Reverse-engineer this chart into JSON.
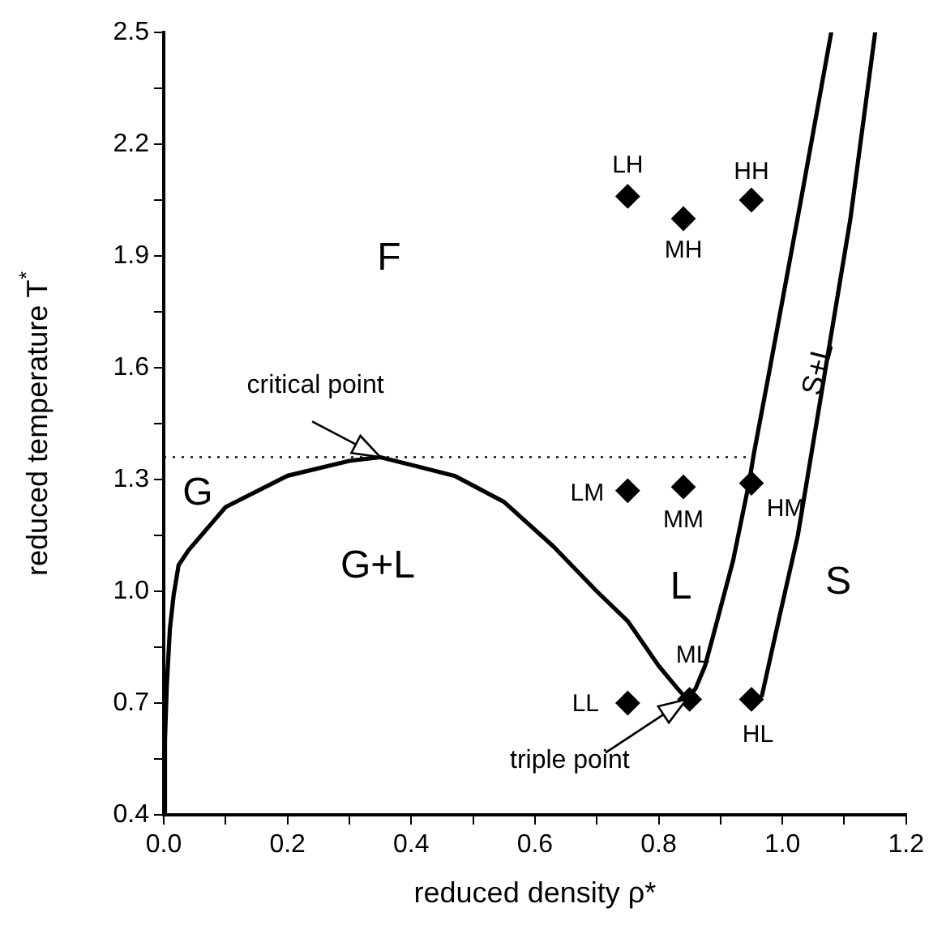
{
  "chart_data": {
    "type": "line",
    "xlabel": "reduced density ρ*",
    "ylabel": "reduced temperature T$^{*}$",
    "xlim": [
      0,
      1.2
    ],
    "ylim": [
      0.4,
      2.5
    ],
    "xticks": [
      {
        "value": 0,
        "label": "0.0"
      },
      {
        "value": 0.1,
        "label": null
      },
      {
        "value": 0.2,
        "label": "0.2"
      },
      {
        "value": 0.3,
        "label": null
      },
      {
        "value": 0.4,
        "label": "0.4"
      },
      {
        "value": 0.5,
        "label": null
      },
      {
        "value": 0.6,
        "label": "0.6"
      },
      {
        "value": 0.7,
        "label": null
      },
      {
        "value": 0.8,
        "label": "0.8"
      },
      {
        "value": 0.9,
        "label": null
      },
      {
        "value": 1,
        "label": "1.0"
      },
      {
        "value": 1.1,
        "label": null
      },
      {
        "value": 1.2,
        "label": "1.2"
      }
    ],
    "yticks": [
      0.4,
      {
        "value": 0.55,
        "label": null
      },
      0.7,
      {
        "value": 0.85,
        "label": null
      },
      {
        "value": 1,
        "label": "1.0"
      },
      {
        "value": 1.15,
        "label": null
      },
      1.3,
      {
        "value": 1.45,
        "label": null
      },
      1.6,
      {
        "value": 1.75,
        "label": null
      },
      1.9,
      {
        "value": 2.05,
        "label": null
      },
      2.2,
      {
        "value": 2.35,
        "label": null
      },
      2.5
    ],
    "series": [
      {
        "type": "line",
        "color": "#000000",
        "marker": "none",
        "x": [
          0,
          0.002,
          0.005,
          0.01,
          0.016,
          0.024,
          0.04,
          0.1,
          0.2,
          0.3,
          0.35,
          0.47,
          0.55,
          0.63,
          0.7,
          0.75,
          0.8,
          0.83,
          0.846
        ],
        "values": [
          0.4,
          0.6,
          0.75,
          0.9,
          0.99,
          1.07,
          1.11,
          1.226,
          1.31,
          1.35,
          1.36,
          1.31,
          1.24,
          1.12,
          1.0,
          0.92,
          0.8,
          0.74,
          0.71
        ]
      },
      {
        "type": "line",
        "color": "#000000",
        "marker": "none",
        "x": [
          0.846,
          0.86,
          0.875,
          0.888,
          0.92,
          0.946,
          0.954,
          0.98,
          1.03,
          1.079
        ],
        "values": [
          0.71,
          0.74,
          0.8,
          0.88,
          1.08,
          1.29,
          1.37,
          1.6,
          2.05,
          2.5
        ]
      },
      {
        "type": "line",
        "color": "#000000",
        "marker": "none",
        "x": [
          0.967,
          0.995,
          1.025,
          1.04,
          1.07,
          1.11,
          1.15
        ],
        "values": [
          0.72,
          0.93,
          1.15,
          1.3,
          1.6,
          2.0,
          2.5
        ]
      },
      {
        "type": "scatter",
        "color": "#000000",
        "marker": "diamond",
        "x": [
          0.75,
          0.84,
          0.95,
          0.75,
          0.84,
          0.95,
          0.75,
          0.85,
          0.95
        ],
        "values": [
          2.06,
          2.0,
          2.05,
          1.27,
          1.28,
          1.29,
          0.7,
          0.71,
          0.71
        ]
      }
    ],
    "ref_lines": [
      {
        "axis": "y",
        "value": 1.36,
        "color": "#000000",
        "line_style": "dotted"
      }
    ],
    "annotations": [
      {
        "text": "critical point",
        "x": 0.35,
        "y": 1.36
      },
      {
        "text": "triple point",
        "x": 0.845,
        "y": 0.71
      },
      "F",
      "G",
      "G+L",
      "L",
      "S",
      "S+L",
      {
        "text": "LH",
        "x": 0.75,
        "y": 2.06
      },
      {
        "text": "MH",
        "x": 0.84,
        "y": 2.0
      },
      {
        "text": "HH",
        "x": 0.95,
        "y": 2.05
      },
      {
        "text": "LM",
        "x": 0.75,
        "y": 1.27
      },
      {
        "text": "MM",
        "x": 0.84,
        "y": 1.28
      },
      {
        "text": "HM",
        "x": 0.95,
        "y": 1.29
      },
      {
        "text": "LL",
        "x": 0.75,
        "y": 0.7
      },
      {
        "text": "ML",
        "x": 0.85,
        "y": 0.71
      },
      {
        "text": "HL",
        "x": 0.95,
        "y": 0.71
      }
    ]
  }
}
